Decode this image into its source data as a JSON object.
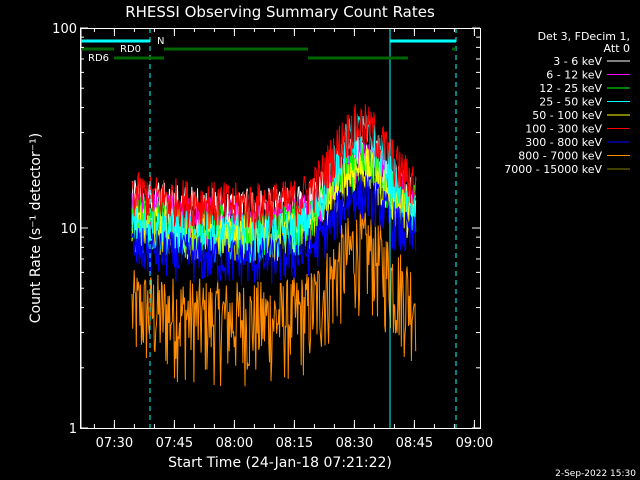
{
  "chart_data": {
    "type": "line",
    "title": "RHESSI Observing Summary Count Rates",
    "xlabel": "Start Time (24-Jan-18 07:21:22)",
    "ylabel": "Count Rate (s⁻¹ detector⁻¹)",
    "yscale": "log",
    "ylim": [
      1,
      100
    ],
    "xlim_minutes": [
      0,
      100
    ],
    "x_ticks": [
      {
        "label": "07:30",
        "min": 8.6
      },
      {
        "label": "07:45",
        "min": 23.6
      },
      {
        "label": "08:00",
        "min": 38.6
      },
      {
        "label": "08:15",
        "min": 53.6
      },
      {
        "label": "08:30",
        "min": 68.6
      },
      {
        "label": "08:45",
        "min": 83.6
      },
      {
        "label": "09:00",
        "min": 98.6
      }
    ],
    "y_ticks": [
      {
        "label": "1",
        "value": 1
      },
      {
        "label": "10",
        "value": 10
      },
      {
        "label": "100",
        "value": 100
      }
    ],
    "legend_header": [
      "Det 3, FDecim 1,",
      "Att 0"
    ],
    "series": [
      {
        "name": "3 - 6 keV",
        "color": "#ffffff",
        "level": 14,
        "peak": 24
      },
      {
        "name": "6 - 12 keV",
        "color": "#ff00ff",
        "level": 12.5,
        "peak": 22
      },
      {
        "name": "12 - 25 keV",
        "color": "#00ff00",
        "level": 11.5,
        "peak": 21
      },
      {
        "name": "25 - 50 keV",
        "color": "#00ffff",
        "level": 10.5,
        "peak": 30
      },
      {
        "name": "50 - 100 keV",
        "color": "#ffff00",
        "level": 10.5,
        "peak": 20
      },
      {
        "name": "100 - 300 keV",
        "color": "#ff0000",
        "level": 15,
        "peak": 33
      },
      {
        "name": "300 - 800 keV",
        "color": "#0000ff",
        "level": 8,
        "peak": 15
      },
      {
        "name": "800 - 7000 keV",
        "color": "#ff8c00",
        "level": 4,
        "peak": 8
      },
      {
        "name": "7000 - 15000 keV",
        "color": "#808000",
        "level": 0,
        "peak": 0
      }
    ],
    "data_start_min": 13,
    "data_end_min": 84,
    "flare_peak_min": 70,
    "annotations": [
      {
        "label": "RD0",
        "color": "#006400"
      },
      {
        "label": "RD6",
        "color": "#006400"
      },
      {
        "label": "N",
        "color": "#00ffff"
      }
    ],
    "vertical_markers": [
      {
        "min": 0.3,
        "color": "#00ffff",
        "style": "solid"
      },
      {
        "min": 17.5,
        "color": "#00ffff",
        "style": "dashed"
      },
      {
        "min": 77.5,
        "color": "#00ffff",
        "style": "solid"
      },
      {
        "min": 94,
        "color": "#00ffff",
        "style": "dashed"
      }
    ],
    "bars": [
      {
        "kind": "night",
        "color": "#00ffff",
        "from": 0.3,
        "to": 17.5,
        "row": "top"
      },
      {
        "kind": "night",
        "color": "#00ffff",
        "from": 77.5,
        "to": 94,
        "row": "top"
      },
      {
        "kind": "rd0",
        "color": "#006400",
        "from": 0.3,
        "to": 8.5,
        "row": "mid"
      },
      {
        "kind": "rd0",
        "color": "#006400",
        "from": 21,
        "to": 57,
        "row": "mid"
      },
      {
        "kind": "rd0",
        "color": "#006400",
        "from": 93,
        "to": 94,
        "row": "mid"
      },
      {
        "kind": "rd6",
        "color": "#006400",
        "from": 8.5,
        "to": 21,
        "row": "low"
      },
      {
        "kind": "rd6",
        "color": "#006400",
        "from": 57,
        "to": 82,
        "row": "low"
      }
    ]
  },
  "footer_date": "2-Sep-2022 15:30"
}
